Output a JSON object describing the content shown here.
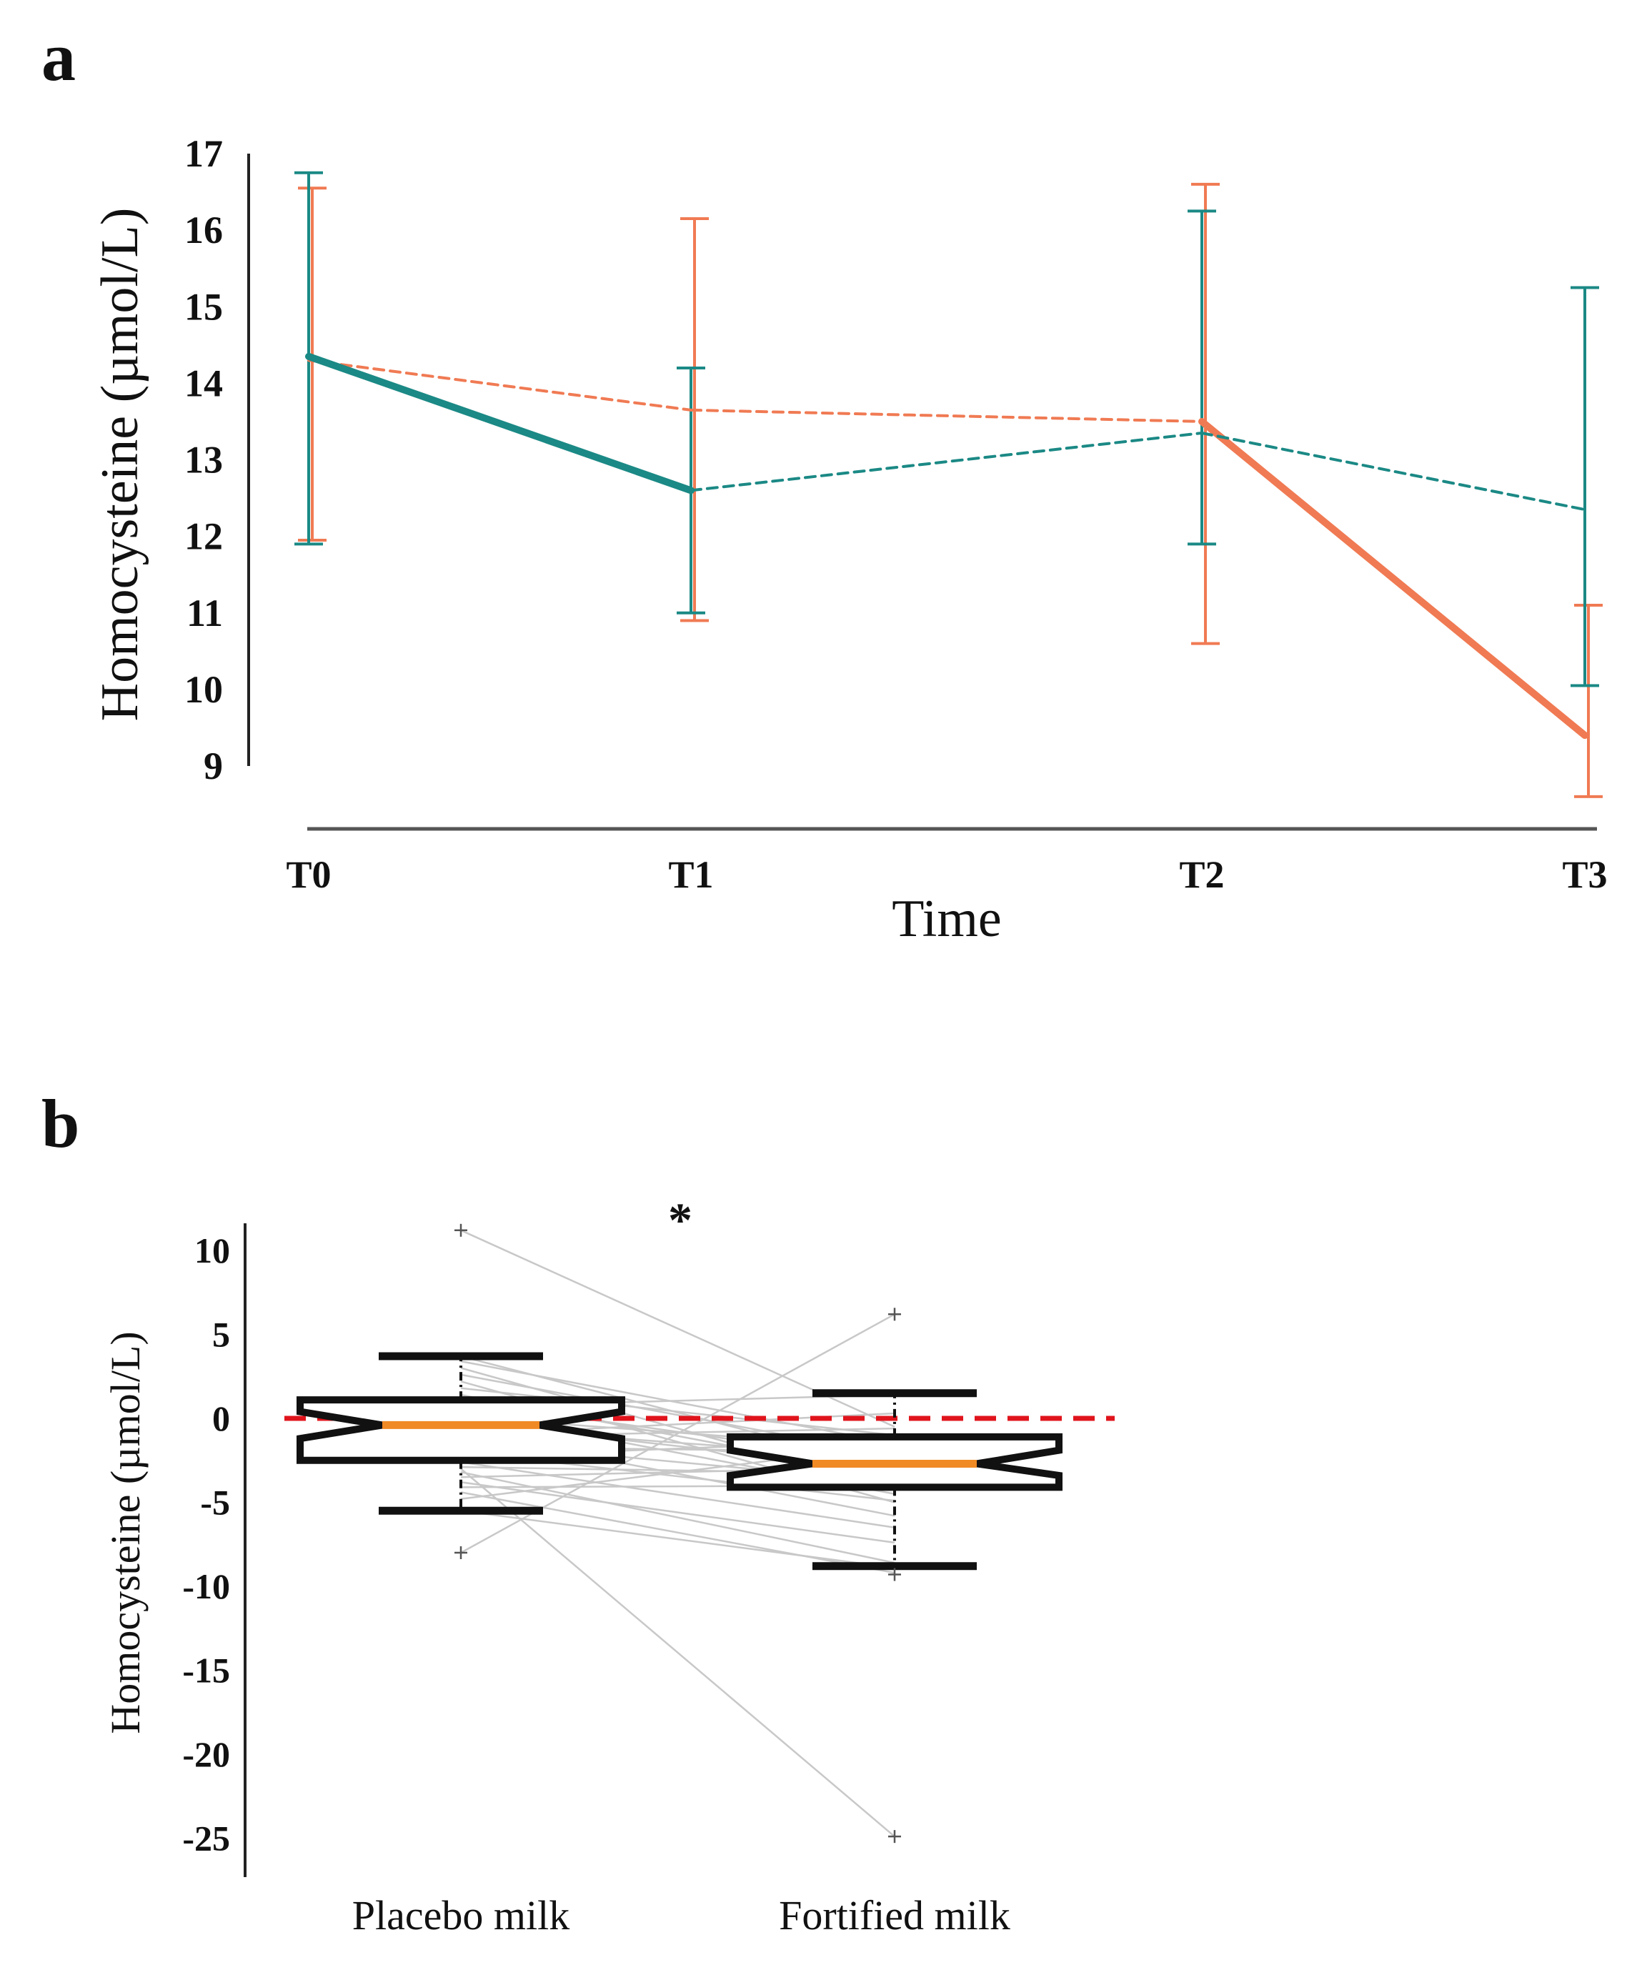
{
  "panel_a": {
    "label": "a"
  },
  "panel_b": {
    "label": "b"
  },
  "colors": {
    "teal": "#1b8985",
    "orange": "#f07a53",
    "median": "#f08a24",
    "pair_line": "#c8c8c8",
    "zero_line": "#e0141c"
  },
  "chart_data": [
    {
      "type": "line",
      "panel": "a",
      "title": "",
      "xlabel": "Time",
      "ylabel": "Homocysteine (µmol/L)",
      "categories": [
        "T0",
        "T1",
        "T2",
        "T3"
      ],
      "yticks": [
        "17",
        "16",
        "15",
        "14",
        "13",
        "12",
        "11",
        "10",
        "9"
      ],
      "ylim": [
        9,
        17
      ],
      "grid": false,
      "series": [
        {
          "name": "teal group",
          "color": "#1b8985",
          "means": [
            14.35,
            12.6,
            13.35,
            12.35
          ],
          "err_high": [
            16.75,
            14.2,
            16.25,
            15.25
          ],
          "err_low": [
            11.9,
            11.0,
            11.9,
            10.05
          ],
          "segment_styles": [
            "solid",
            "dashed",
            "dashed"
          ]
        },
        {
          "name": "orange group",
          "color": "#f07a53",
          "means": [
            14.3,
            13.65,
            13.5,
            9.4
          ],
          "err_high": [
            16.55,
            16.15,
            16.6,
            11.1
          ],
          "err_low": [
            11.95,
            10.9,
            10.6,
            8.6
          ],
          "segment_styles": [
            "dashed",
            "dashed",
            "solid"
          ]
        }
      ]
    },
    {
      "type": "box",
      "panel": "b",
      "title": "",
      "xlabel": "",
      "ylabel": "Homocysteine (µmol/L)",
      "categories": [
        "Placebo milk",
        "Fortified milk"
      ],
      "yticks": [
        "10",
        "5",
        "0",
        "-5",
        "-10",
        "-15",
        "-20",
        "-25"
      ],
      "ylim": [
        -25.5,
        12
      ],
      "reference_line": 0,
      "significance": "*",
      "boxes": [
        {
          "name": "Placebo milk",
          "whisker_low": -5.5,
          "q1": -2.5,
          "median": -0.4,
          "q3": 1.1,
          "whisker_high": 3.7,
          "notch_low": -1.2,
          "notch_high": 0.4,
          "outliers": [
            11.2,
            -8.0
          ]
        },
        {
          "name": "Fortified milk",
          "whisker_low": -8.8,
          "q1": -4.1,
          "median": -2.7,
          "q3": -1.1,
          "whisker_high": 1.5,
          "notch_low": -3.4,
          "notch_high": -1.9,
          "outliers": [
            6.2,
            -9.3,
            -24.9
          ]
        }
      ],
      "pairs": [
        [
          11.2,
          -0.5
        ],
        [
          3.7,
          -3.0
        ],
        [
          3.4,
          -1.5
        ],
        [
          3.0,
          -4.2
        ],
        [
          2.6,
          -2.2
        ],
        [
          2.2,
          -5.0
        ],
        [
          1.8,
          -1.0
        ],
        [
          1.4,
          -3.5
        ],
        [
          1.0,
          -2.6
        ],
        [
          0.7,
          1.4
        ],
        [
          0.4,
          -4.5
        ],
        [
          0.1,
          -1.8
        ],
        [
          -0.2,
          -3.1
        ],
        [
          -0.5,
          -2.4
        ],
        [
          -0.8,
          -5.8
        ],
        [
          -1.1,
          -0.6
        ],
        [
          -1.4,
          -3.8
        ],
        [
          -1.7,
          -2.0
        ],
        [
          -2.0,
          -4.9
        ],
        [
          -2.3,
          -1.3
        ],
        [
          -2.6,
          -6.5
        ],
        [
          -2.9,
          -3.3
        ],
        [
          -3.2,
          -8.6
        ],
        [
          -3.5,
          -2.9
        ],
        [
          -3.8,
          -7.4
        ],
        [
          -4.1,
          -4.0
        ],
        [
          -4.4,
          -9.2
        ],
        [
          -4.8,
          -1.6
        ],
        [
          -5.5,
          -8.9
        ],
        [
          -8.0,
          6.2
        ],
        [
          -3.0,
          -24.9
        ],
        [
          -1.0,
          0.3
        ]
      ]
    }
  ]
}
